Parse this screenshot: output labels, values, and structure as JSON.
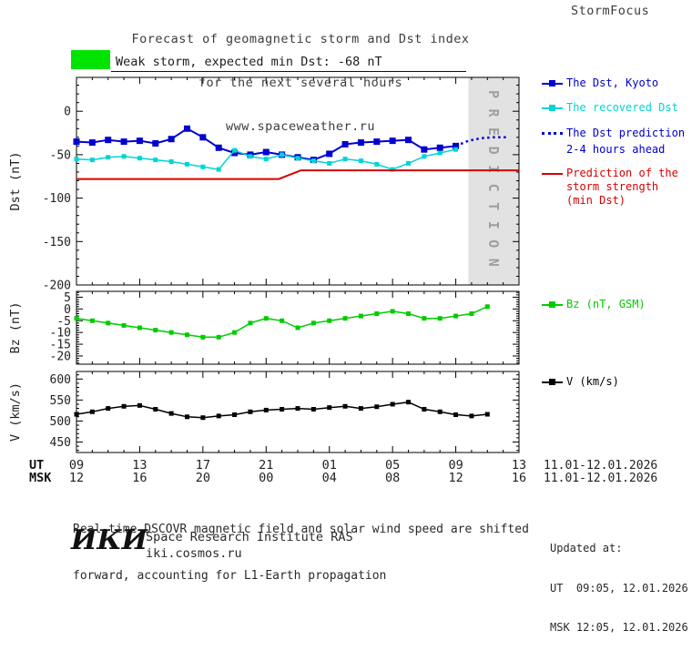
{
  "header": {
    "title_line1": "Forecast of geomagnetic storm and Dst index",
    "title_line2": "for the next several hours",
    "title_line3": "www.spaceweather.ru",
    "brand": "StormFocus"
  },
  "storm_banner": {
    "text": "Weak storm, expected min Dst: -68 nT",
    "severity_color": "#00e400"
  },
  "legend": {
    "dst_kyoto": "The Dst, Kyoto",
    "recovered": "The recovered Dst",
    "prediction_l1": "The Dst prediction",
    "prediction_l2": "2-4 hours ahead",
    "storm_l1": "Prediction of the",
    "storm_l2": "storm strength",
    "storm_l3": "(min Dst)",
    "bz": "Bz (nT, GSM)",
    "v": "V (km/s)"
  },
  "axis": {
    "ut_label": "UT",
    "msk_label": "MSK",
    "date_range": "11.01-12.01.2026"
  },
  "footer": {
    "note_line1": "Real-time DSCOVR magnetic field and solar wind speed are shifted",
    "note_line2": "forward, accounting for L1-Earth propagation",
    "updated_label": "Updated at:",
    "updated_ut": "UT  09:05, 12.01.2026",
    "updated_msk": "MSK 12:05, 12.01.2026",
    "logo": "ИКИ",
    "institute": "Space Research Institute RAS",
    "site": "iki.cosmos.ru"
  },
  "chart_data": {
    "type": "line",
    "x_domain": [
      9,
      37
    ],
    "x_ticks": {
      "positions": [
        9,
        13,
        17,
        21,
        25,
        29,
        33,
        37
      ],
      "ut": [
        "09",
        "13",
        "17",
        "21",
        "01",
        "05",
        "09",
        "13"
      ],
      "msk": [
        "12",
        "16",
        "20",
        "00",
        "04",
        "08",
        "12",
        "16"
      ]
    },
    "panels": [
      {
        "id": "dst",
        "ylabel": "Dst (nT)",
        "ylim": [
          -200,
          39
        ],
        "yticks": [
          0,
          -50,
          -100,
          -150,
          -200
        ],
        "yminor": 10,
        "prediction_band": {
          "from": 33.8,
          "to": 37,
          "label": "PREDICTION",
          "color": "#e2e2e2"
        },
        "series": [
          {
            "name": "The Dst, Kyoto",
            "color": "#0000d0",
            "width": 2,
            "marker": "square",
            "marker_size": 7,
            "x": [
              9,
              10,
              11,
              12,
              13,
              14,
              15,
              16,
              17,
              18,
              19,
              20,
              21,
              22,
              23,
              24,
              25,
              26,
              27,
              28,
              29,
              30,
              31,
              32,
              33
            ],
            "y": [
              -35,
              -36,
              -33,
              -35,
              -34,
              -37,
              -32,
              -20,
              -30,
              -42,
              -48,
              -50,
              -47,
              -50,
              -53,
              -56,
              -49,
              -38,
              -36,
              -35,
              -34,
              -33,
              -44,
              -42,
              -40
            ]
          },
          {
            "name": "The recovered Dst",
            "color": "#00d5d5",
            "width": 1.5,
            "marker": "square",
            "marker_size": 5,
            "x": [
              9,
              10,
              11,
              12,
              13,
              14,
              15,
              16,
              17,
              18,
              19,
              20,
              21,
              22,
              23,
              24,
              25,
              26,
              27,
              28,
              29,
              30,
              31,
              32,
              33
            ],
            "y": [
              -55,
              -56,
              -53,
              -52,
              -54,
              -56,
              -58,
              -61,
              -64,
              -67,
              -45,
              -52,
              -55,
              -50,
              -54,
              -57,
              -60,
              -55,
              -57,
              -61,
              -67,
              -60,
              -52,
              -48,
              -44
            ]
          },
          {
            "name": "The Dst prediction 2-4 hours ahead",
            "color": "#0000d0",
            "width": 2.5,
            "style": "dotted",
            "x": [
              33,
              33.8,
              34.6,
              35.4,
              36.2
            ],
            "y": [
              -40,
              -34,
              -31,
              -30,
              -30
            ]
          },
          {
            "name": "Prediction of the storm strength (min Dst)",
            "color": "#d40000",
            "width": 2,
            "x": [
              9,
              21.8,
              23.2,
              37
            ],
            "y": [
              -78,
              -78,
              -68,
              -68
            ]
          }
        ]
      },
      {
        "id": "bz",
        "ylabel": "Bz (nT)",
        "ylim": [
          -23.5,
          7.5
        ],
        "yticks": [
          5,
          0,
          -5,
          -10,
          -15,
          -20
        ],
        "yminor": 1,
        "series": [
          {
            "name": "Bz (nT, GSM)",
            "color": "#00cc00",
            "width": 1.5,
            "marker": "square",
            "marker_size": 5,
            "x": [
              9,
              10,
              11,
              12,
              13,
              14,
              15,
              16,
              17,
              18,
              19,
              20,
              21,
              22,
              23,
              24,
              25,
              26,
              27,
              28,
              29,
              30,
              31,
              32,
              33,
              34,
              35
            ],
            "y": [
              -4,
              -5,
              -6,
              -7,
              -8,
              -9,
              -10,
              -11,
              -12,
              -12,
              -10,
              -6,
              -4,
              -5,
              -8,
              -6,
              -5,
              -4,
              -3,
              -2,
              -1,
              -2,
              -4,
              -4,
              -3,
              -2,
              1
            ]
          }
        ]
      },
      {
        "id": "v",
        "ylabel": "V (km/s)",
        "ylim": [
          425,
          618
        ],
        "yticks": [
          600,
          550,
          500,
          450
        ],
        "yminor": 10,
        "series": [
          {
            "name": "V (km/s)",
            "color": "#000000",
            "width": 1.5,
            "marker": "square",
            "marker_size": 5,
            "x": [
              9,
              10,
              11,
              12,
              13,
              14,
              15,
              16,
              17,
              18,
              19,
              20,
              21,
              22,
              23,
              24,
              25,
              26,
              27,
              28,
              29,
              30,
              31,
              32,
              33,
              34,
              35
            ],
            "y": [
              516,
              522,
              530,
              535,
              537,
              528,
              518,
              510,
              508,
              512,
              515,
              522,
              526,
              528,
              530,
              528,
              532,
              535,
              530,
              534,
              540,
              545,
              528,
              522,
              515,
              512,
              516
            ]
          }
        ]
      }
    ]
  }
}
